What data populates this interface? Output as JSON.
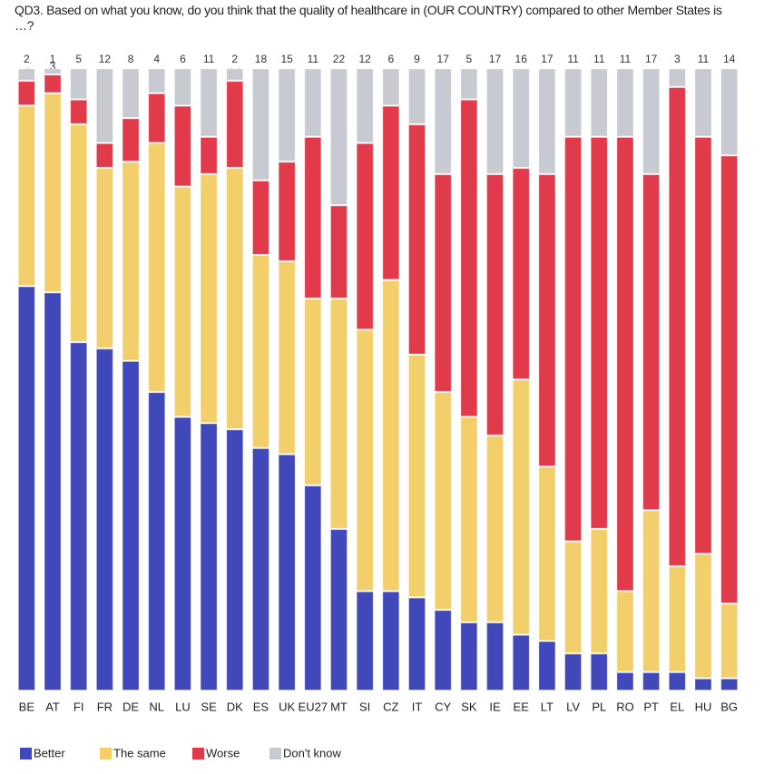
{
  "chart_data": {
    "type": "stacked-bar",
    "title": "QD3. Based on what you know, do you think that the quality of healthcare in (OUR COUNTRY) compared to other Member States is …?",
    "categories": [
      "BE",
      "AT",
      "FI",
      "FR",
      "DE",
      "NL",
      "LU",
      "SE",
      "DK",
      "ES",
      "UK",
      "EU27",
      "MT",
      "SI",
      "CZ",
      "IT",
      "CY",
      "SK",
      "IE",
      "EE",
      "LT",
      "LV",
      "PL",
      "RO",
      "PT",
      "EL",
      "HU",
      "BG"
    ],
    "series": [
      {
        "name": "Better",
        "color": "#4148b9",
        "values": [
          65,
          64,
          56,
          55,
          53,
          48,
          44,
          43,
          42,
          39,
          38,
          33,
          26,
          16,
          16,
          15,
          13,
          11,
          11,
          9,
          8,
          6,
          6,
          3,
          3,
          3,
          2,
          2
        ]
      },
      {
        "name": "The same",
        "color": "#f2cf6b",
        "values": [
          29,
          32,
          35,
          29,
          32,
          40,
          37,
          40,
          42,
          31,
          31,
          30,
          37,
          42,
          50,
          39,
          35,
          33,
          30,
          41,
          28,
          18,
          20,
          13,
          26,
          17,
          20,
          12
        ]
      },
      {
        "name": "Worse",
        "color": "#e13a4b",
        "values": [
          4,
          3,
          4,
          4,
          7,
          8,
          13,
          6,
          14,
          12,
          16,
          26,
          15,
          30,
          28,
          37,
          35,
          51,
          42,
          34,
          47,
          65,
          63,
          73,
          54,
          77,
          67,
          72
        ]
      },
      {
        "name": "Don't know",
        "color": "#c8cad1",
        "values": [
          2,
          1,
          5,
          12,
          8,
          4,
          6,
          11,
          2,
          18,
          15,
          11,
          22,
          12,
          6,
          9,
          17,
          5,
          17,
          16,
          17,
          11,
          11,
          11,
          17,
          3,
          11,
          14
        ]
      }
    ],
    "ylim": [
      0,
      100
    ]
  }
}
